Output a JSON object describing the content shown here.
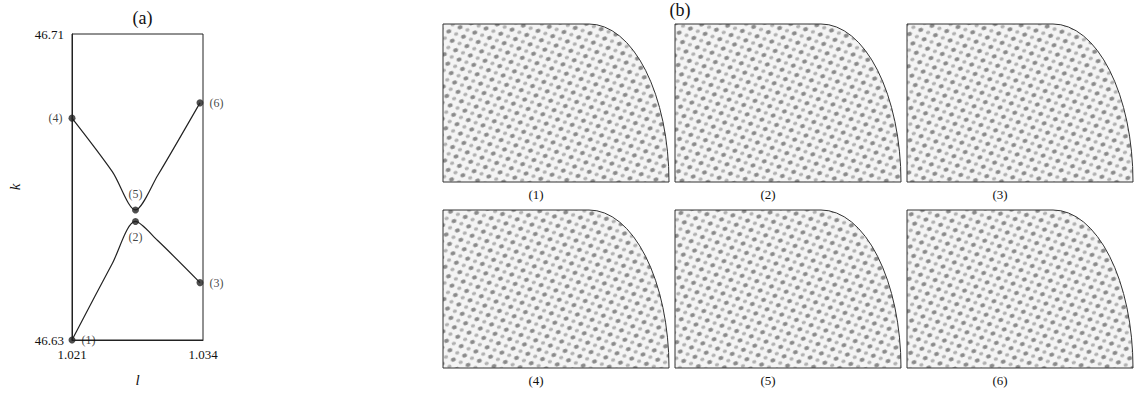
{
  "chart_data": {
    "type": "line",
    "title": "(a)",
    "x_label": "l",
    "y_label": "k",
    "xlim": [
      1.021,
      1.034
    ],
    "ylim": [
      46.63,
      46.71
    ],
    "xticks": [
      1.021,
      1.034
    ],
    "yticks": [
      46.63,
      46.71
    ],
    "grid": false,
    "color": "#222222",
    "marker": "circle",
    "series": [
      {
        "color": "#222222",
        "x": [
          1.021,
          1.025,
          1.0273,
          1.0295,
          1.0337
        ],
        "values": [
          46.63,
          46.65,
          46.661,
          46.656,
          46.645
        ]
      },
      {
        "color": "#222222",
        "x": [
          1.021,
          1.025,
          1.0273,
          1.0295,
          1.0337
        ],
        "values": [
          46.688,
          46.674,
          46.664,
          46.673,
          46.692
        ]
      }
    ],
    "points": [
      {
        "label": "(1)",
        "x": 1.021,
        "y": 46.63
      },
      {
        "label": "(2)",
        "x": 1.0273,
        "y": 46.661
      },
      {
        "label": "(3)",
        "x": 1.0337,
        "y": 46.645
      },
      {
        "label": "(4)",
        "x": 1.021,
        "y": 46.688
      },
      {
        "label": "(5)",
        "x": 1.0273,
        "y": 46.664
      },
      {
        "label": "(6)",
        "x": 1.0337,
        "y": 46.692
      }
    ]
  },
  "panel_b": {
    "title": "(b)",
    "images": [
      "(1)",
      "(2)",
      "(3)",
      "(4)",
      "(5)",
      "(6)"
    ]
  }
}
